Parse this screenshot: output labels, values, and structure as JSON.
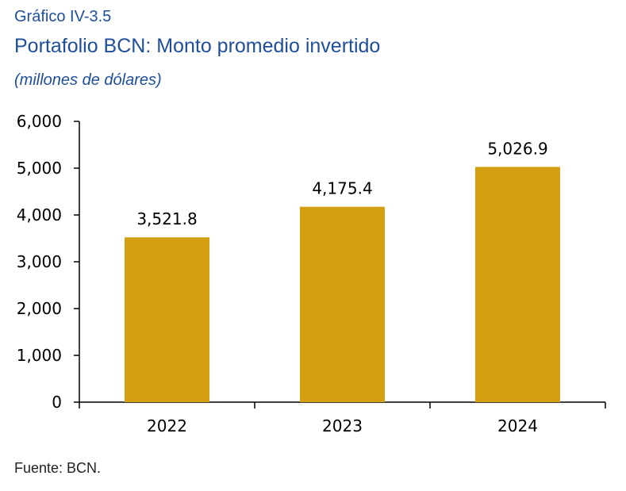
{
  "header": {
    "figure_label": "Gráfico IV-3.5",
    "title": "Portafolio BCN: Monto promedio invertido",
    "subtitle": "(millones de dólares)"
  },
  "footer": {
    "source": "Fuente: BCN."
  },
  "chart_data": {
    "type": "bar",
    "title": "Portafolio BCN: Monto promedio invertido",
    "subtitle": "(millones de dólares)",
    "categories": [
      "2022",
      "2023",
      "2024"
    ],
    "values": [
      3521.8,
      4175.4,
      5026.9
    ],
    "value_labels": [
      "3,521.8",
      "4,175.4",
      "5,026.9"
    ],
    "yticks": [
      0,
      1000,
      2000,
      3000,
      4000,
      5000,
      6000
    ],
    "ytick_labels": [
      "0",
      "1,000",
      "2,000",
      "3,000",
      "4,000",
      "5,000",
      "6,000"
    ],
    "ylim": [
      0,
      6000
    ],
    "xlabel": "",
    "ylabel": "",
    "grid": false,
    "bar_color": "#d4a012",
    "axis_color": "#000000"
  }
}
